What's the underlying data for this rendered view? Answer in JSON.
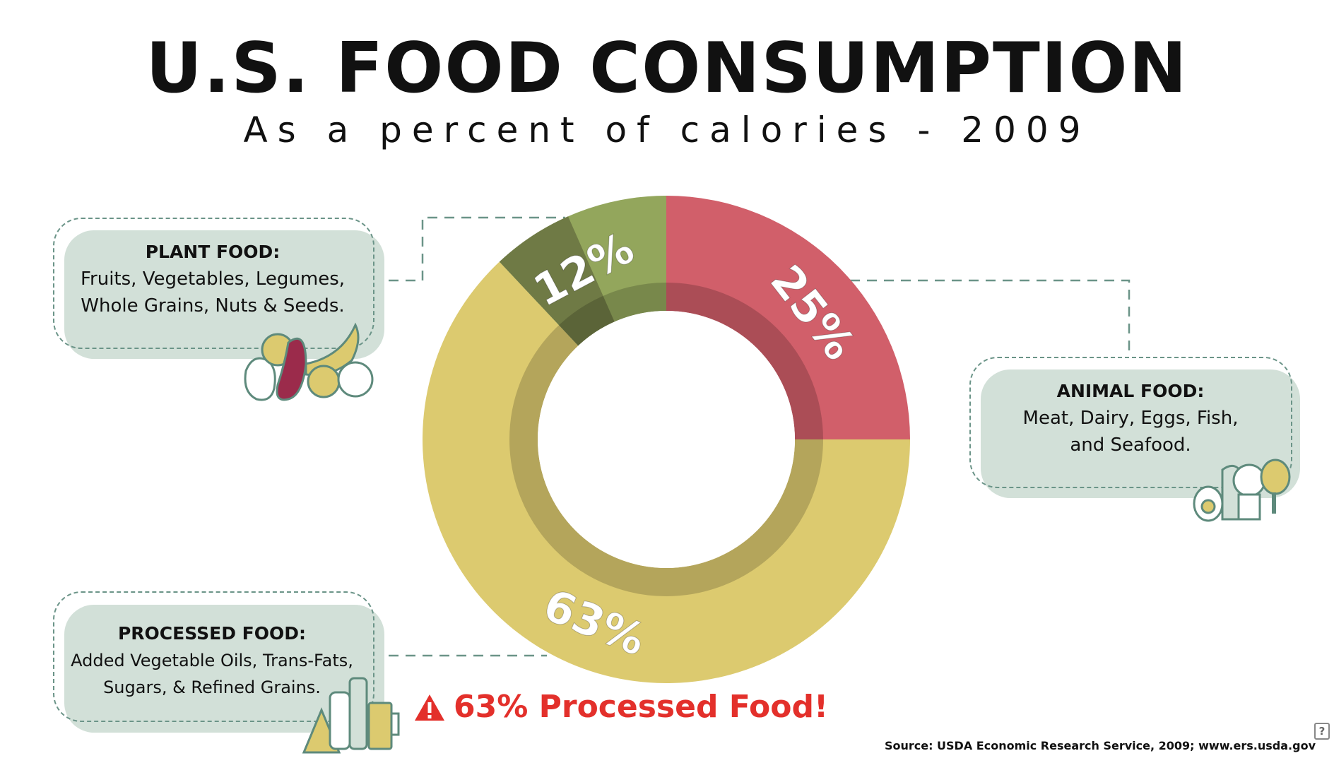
{
  "title": "U.S. FOOD CONSUMPTION",
  "subtitle": "As a percent of calories - 2009",
  "chart_data": {
    "type": "pie",
    "subtype": "donut",
    "title": "U.S. FOOD CONSUMPTION",
    "subtitle": "As a percent of calories - 2009",
    "slices": [
      {
        "label": "ANIMAL FOOD",
        "value": 25,
        "display": "25%",
        "color": "#d15f6a"
      },
      {
        "label": "PROCESSED FOOD",
        "value": 63,
        "display": "63%",
        "color": "#dcca6f"
      },
      {
        "label": "PLANT FOOD",
        "value": 12,
        "display": "12%",
        "color": "#93a65c"
      }
    ]
  },
  "callouts": {
    "plant": {
      "heading": "PLANT FOOD:",
      "line1": "Fruits, Vegetables, Legumes,",
      "line2": "Whole Grains, Nuts & Seeds."
    },
    "animal": {
      "heading": "ANIMAL FOOD:",
      "line1": "Meat, Dairy, Eggs, Fish,",
      "line2": "and Seafood."
    },
    "processed": {
      "heading": "PROCESSED FOOD:",
      "line1": "Added Vegetable Oils, Trans-Fats,",
      "line2": "Sugars, & Refined Grains."
    }
  },
  "warning": "63% Processed Food!",
  "source": "Source: USDA Economic Research Service, 2009; www.ers.usda.gov",
  "help_icon": "?",
  "colors": {
    "accent_red": "#e3302b",
    "box_bg": "#d2e0d8",
    "dash": "#6b9488"
  }
}
